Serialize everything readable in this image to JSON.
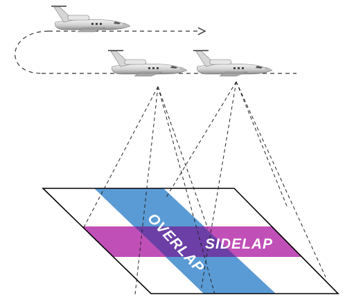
{
  "diagram": {
    "labels": {
      "overlap": "OVERLAP",
      "sidelap": "SIDELAP"
    },
    "colors": {
      "overlap_band": "#5b9bd5",
      "sidelap_band": "#c04fb8",
      "intersection": "#6b3fa6",
      "ground_fill": "#ffffff",
      "ground_outline": "#000000",
      "flight_path": "#333333",
      "aircraft_body": "#c8c8c8"
    },
    "icons": [
      "jet-aircraft-icon",
      "flight-direction-arrow-icon"
    ]
  }
}
